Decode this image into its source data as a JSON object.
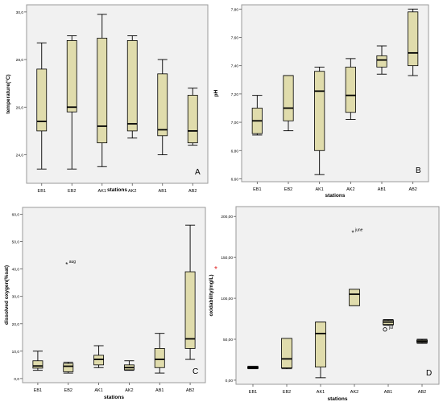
{
  "chart_data": [
    {
      "type": "boxplot",
      "panel_label": "A",
      "xlabel": "stations",
      "ylabel": "temperature(°C)",
      "categories": [
        "EB1",
        "EB2",
        "AK1",
        "AK2",
        "AB1",
        "AB2"
      ],
      "ylim": [
        22.8,
        30.3
      ],
      "yticks": [
        24.0,
        26.0,
        28.0,
        30.0
      ],
      "ytick_labels": [
        "24,0",
        "26,0",
        "28,0",
        "30,0"
      ],
      "boxes": [
        {
          "min": 23.4,
          "q1": 25.0,
          "median": 25.4,
          "q3": 27.6,
          "max": 28.7
        },
        {
          "min": 23.4,
          "q1": 25.8,
          "median": 26.0,
          "q3": 28.8,
          "max": 29.0
        },
        {
          "min": 23.5,
          "q1": 24.5,
          "median": 25.2,
          "q3": 28.9,
          "max": 29.9
        },
        {
          "min": 24.7,
          "q1": 25.0,
          "median": 25.3,
          "q3": 28.8,
          "max": 29.0
        },
        {
          "min": 24.0,
          "q1": 24.8,
          "median": 25.05,
          "q3": 27.4,
          "max": 28.0
        },
        {
          "min": 24.4,
          "q1": 24.5,
          "median": 25.0,
          "q3": 26.5,
          "max": 26.8
        }
      ],
      "outliers": []
    },
    {
      "type": "boxplot",
      "panel_label": "B",
      "xlabel": "stations",
      "ylabel": "pH",
      "categories": [
        "EB1",
        "EB2",
        "AK1",
        "AK2",
        "AB1",
        "AB2"
      ],
      "ylim": [
        6.58,
        7.83
      ],
      "yticks": [
        6.6,
        6.8,
        7.0,
        7.2,
        7.4,
        7.6,
        7.8
      ],
      "ytick_labels": [
        "6,60",
        "6,80",
        "7,00",
        "7,20",
        "7,40",
        "7,60",
        "7,80"
      ],
      "boxes": [
        {
          "min": 6.91,
          "q1": 6.92,
          "median": 7.01,
          "q3": 7.1,
          "max": 7.19
        },
        {
          "min": 6.94,
          "q1": 7.01,
          "median": 7.1,
          "q3": 7.33,
          "max": 7.33
        },
        {
          "min": 6.63,
          "q1": 6.8,
          "median": 7.22,
          "q3": 7.36,
          "max": 7.39
        },
        {
          "min": 7.02,
          "q1": 7.07,
          "median": 7.19,
          "q3": 7.39,
          "max": 7.45
        },
        {
          "min": 7.34,
          "q1": 7.39,
          "median": 7.44,
          "q3": 7.47,
          "max": 7.54
        },
        {
          "min": 7.33,
          "q1": 7.4,
          "median": 7.49,
          "q3": 7.78,
          "max": 7.8
        }
      ],
      "outliers": []
    },
    {
      "type": "boxplot",
      "panel_label": "C",
      "xlabel": "stations",
      "ylabel": "dissolved oxygen(%sat)",
      "categories": [
        "EB1",
        "EB2",
        "AK1",
        "AK2",
        "AB1",
        "AB2"
      ],
      "ylim": [
        -1.5,
        62.5
      ],
      "yticks": [
        0,
        10,
        20,
        30,
        40,
        50,
        60
      ],
      "ytick_labels": [
        "0,0",
        "10,0",
        "20,0",
        "30,0",
        "40,0",
        "50,0",
        "60,0"
      ],
      "boxes": [
        {
          "min": 3.0,
          "q1": 3.8,
          "median": 4.6,
          "q3": 6.5,
          "max": 10.0
        },
        {
          "min": 2.0,
          "q1": 2.5,
          "median": 4.5,
          "q3": 5.5,
          "max": 6.0
        },
        {
          "min": 4.0,
          "q1": 5.0,
          "median": 7.0,
          "q3": 8.5,
          "max": 12.0
        },
        {
          "min": 3.0,
          "q1": 3.2,
          "median": 4.0,
          "q3": 5.0,
          "max": 6.5
        },
        {
          "min": 2.0,
          "q1": 4.0,
          "median": 7.0,
          "q3": 11.0,
          "max": 16.5
        },
        {
          "min": 7.0,
          "q1": 11.0,
          "median": 14.5,
          "q3": 39.0,
          "max": 56.0
        }
      ],
      "outliers": [
        {
          "category": "EB2",
          "value": 42.0,
          "marker": "*",
          "label": "aug"
        }
      ]
    },
    {
      "type": "boxplot",
      "panel_label": "D",
      "xlabel": "stations",
      "ylabel": "oxidability(mg/L)",
      "categories": [
        "EB1",
        "EB2",
        "AK1",
        "AK2",
        "AB1",
        "AB2"
      ],
      "ylim": [
        -5,
        212
      ],
      "yticks": [
        0,
        50,
        100,
        150,
        200
      ],
      "ytick_labels": [
        "0,00",
        "50,00",
        "100,00",
        "150,00",
        "200,00"
      ],
      "boxes": [
        {
          "min": 14.0,
          "q1": 14.5,
          "median": 15.5,
          "q3": 16.5,
          "max": 17.0
        },
        {
          "min": 14.0,
          "q1": 15.0,
          "median": 26.0,
          "q3": 51.0,
          "max": 51.0
        },
        {
          "min": 3.0,
          "q1": 16.0,
          "median": 57.0,
          "q3": 71.0,
          "max": 71.0
        },
        {
          "min": 91.0,
          "q1": 91.0,
          "median": 105.0,
          "q3": 111.0,
          "max": 111.0
        },
        {
          "min": 67.0,
          "q1": 68.0,
          "median": 71.0,
          "q3": 73.0,
          "max": 74.0
        },
        {
          "min": 45.0,
          "q1": 46.0,
          "median": 47.5,
          "q3": 49.0,
          "max": 50.0
        }
      ],
      "outliers": [
        {
          "category": "AK2",
          "value": 181.0,
          "marker": "*",
          "label": "june"
        },
        {
          "category": "AB1",
          "value": 62.0,
          "marker": "o",
          "label": "jul"
        }
      ]
    }
  ],
  "colors": {
    "box_fill": "#e0dcac",
    "box_stroke": "#000000",
    "frame_fill": "#f1f1f1",
    "frame_stroke": "#9a9a9a",
    "red_star": "#e02020"
  }
}
